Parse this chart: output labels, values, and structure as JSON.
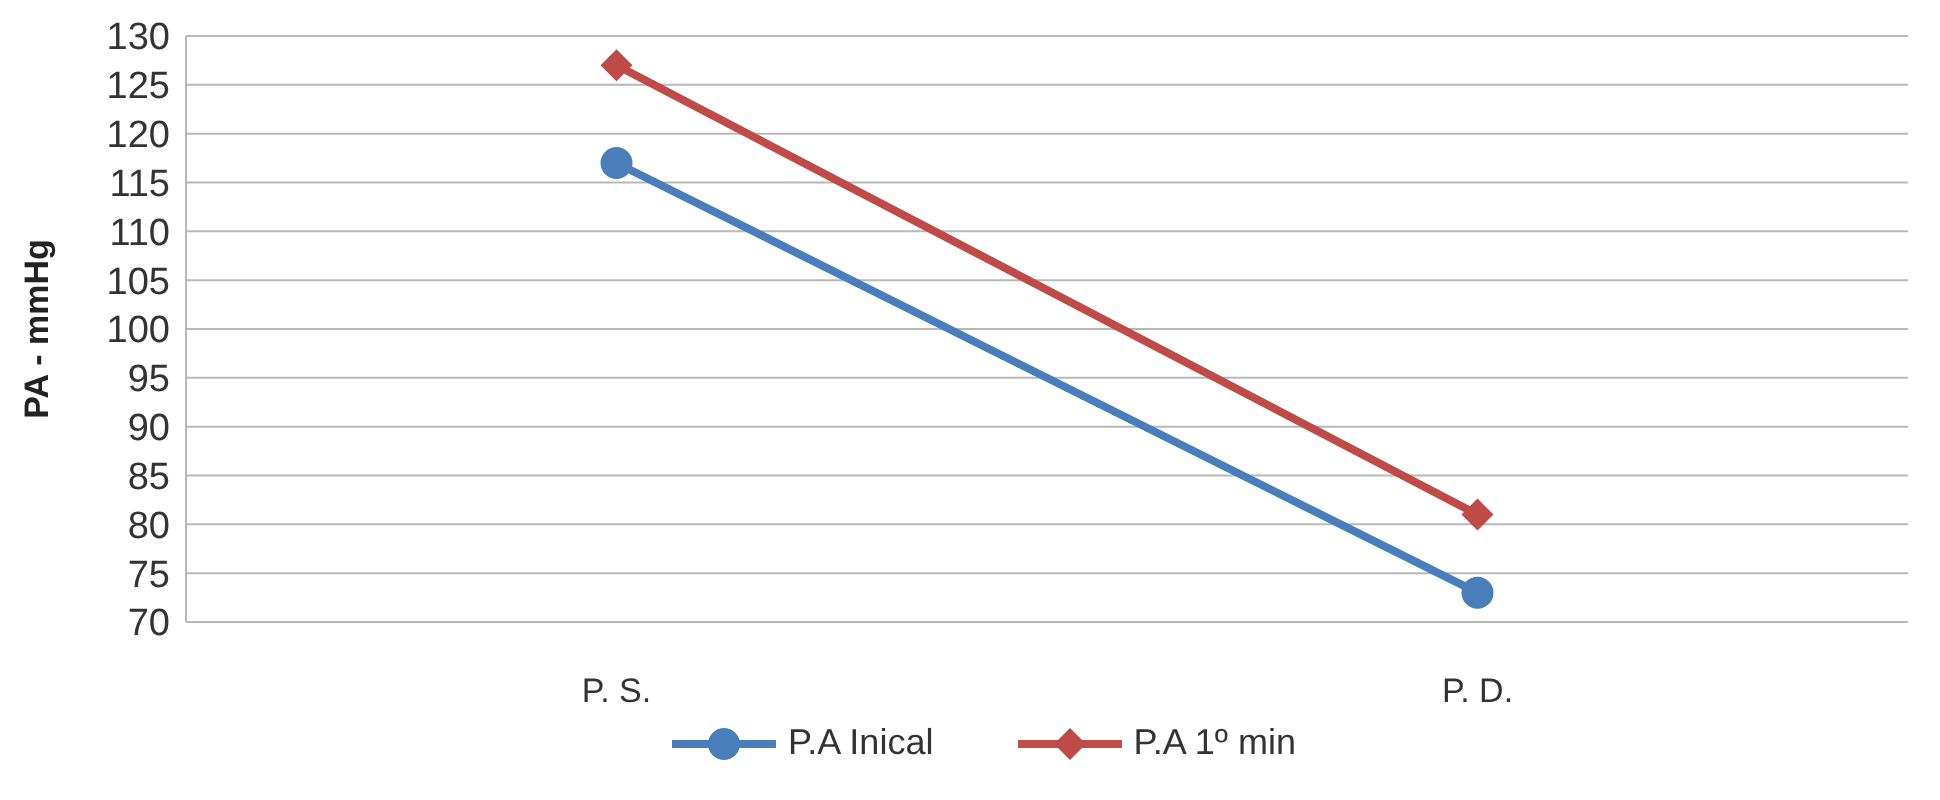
{
  "chart_data": {
    "type": "line",
    "ylabel": "PA - mmHg",
    "categories": [
      "P. S.",
      "P. D."
    ],
    "series": [
      {
        "name": "P.A Inical",
        "color": "#4a7ebb",
        "values": [
          117,
          73
        ],
        "marker": "circle"
      },
      {
        "name": "P.A 1º min",
        "color": "#be4b48",
        "values": [
          127,
          81
        ],
        "marker": "diamond"
      }
    ],
    "ylim": [
      70,
      130
    ],
    "yticks": [
      70,
      75,
      80,
      85,
      90,
      95,
      100,
      105,
      110,
      115,
      120,
      125,
      130
    ],
    "grid": "y",
    "legend": "bottom"
  }
}
